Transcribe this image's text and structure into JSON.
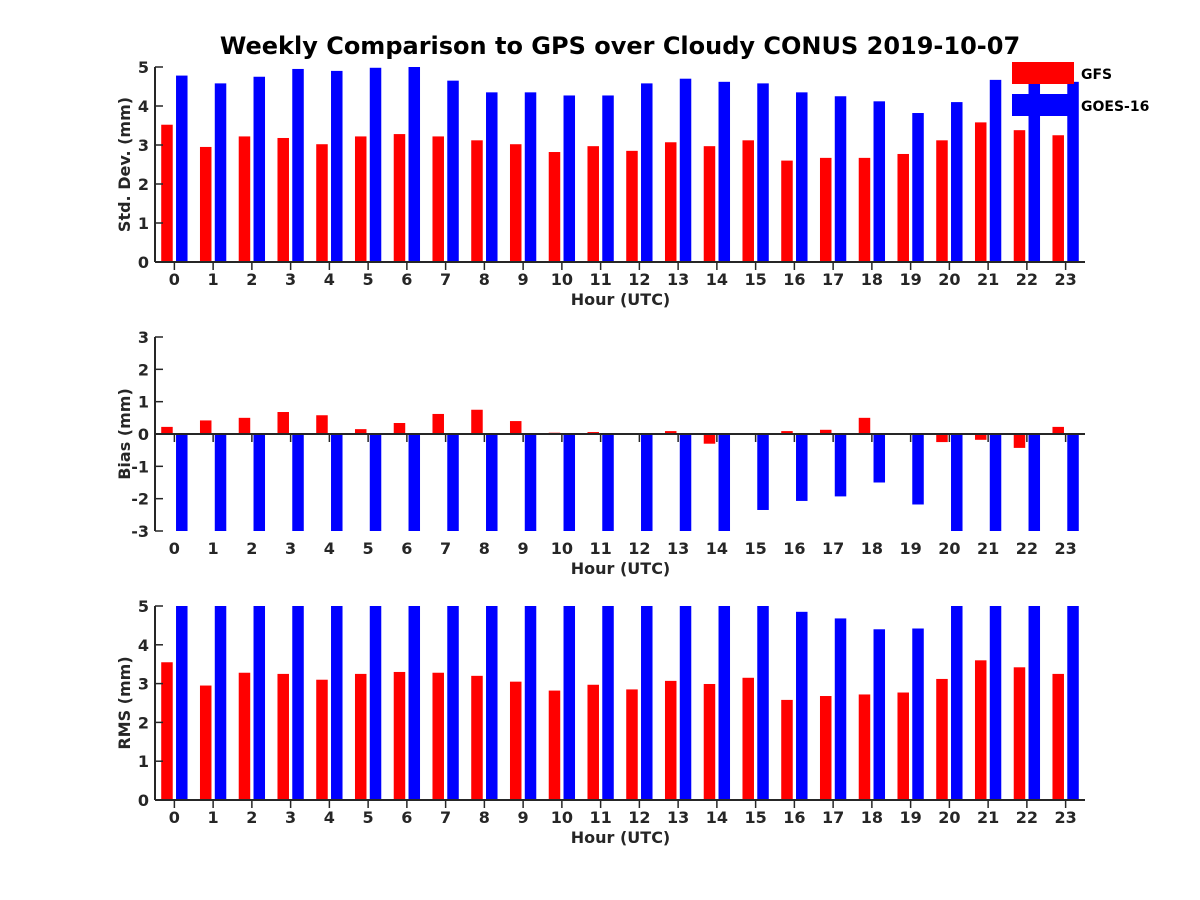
{
  "title": "Weekly Comparison to GPS over Cloudy CONUS 2019-10-07",
  "colors": {
    "GFS": "#ff0000",
    "GOES-16": "#0000ff",
    "axis": "#262626"
  },
  "legend": {
    "placement": "top-right",
    "items": [
      "GFS",
      "GOES-16"
    ]
  },
  "chart_data": [
    {
      "type": "bar",
      "ylabel": "Std. Dev. (mm)",
      "xlabel": "Hour (UTC)",
      "ylim": [
        0,
        5
      ],
      "yticks": [
        "0",
        "1",
        "2",
        "3",
        "4",
        "5"
      ],
      "categories": [
        "0",
        "1",
        "2",
        "3",
        "4",
        "5",
        "6",
        "7",
        "8",
        "9",
        "10",
        "11",
        "12",
        "13",
        "14",
        "15",
        "16",
        "17",
        "18",
        "19",
        "20",
        "21",
        "22",
        "23"
      ],
      "series": [
        {
          "name": "GFS",
          "values": [
            3.52,
            2.95,
            3.22,
            3.18,
            3.02,
            3.22,
            3.28,
            3.22,
            3.12,
            3.02,
            2.82,
            2.97,
            2.85,
            3.07,
            2.97,
            3.12,
            2.6,
            2.67,
            2.67,
            2.77,
            3.12,
            3.58,
            3.38,
            3.25
          ]
        },
        {
          "name": "GOES-16",
          "values": [
            4.78,
            4.58,
            4.75,
            4.95,
            4.9,
            4.98,
            5.0,
            4.65,
            4.35,
            4.35,
            4.27,
            4.27,
            4.58,
            4.7,
            4.62,
            4.58,
            4.35,
            4.25,
            4.12,
            3.82,
            4.1,
            4.67,
            4.85,
            4.62
          ]
        }
      ]
    },
    {
      "type": "bar",
      "ylabel": "Bias (mm)",
      "xlabel": "Hour (UTC)",
      "ylim": [
        -3,
        3
      ],
      "yticks": [
        "-3",
        "-2",
        "-1",
        "0",
        "1",
        "2",
        "3"
      ],
      "categories": [
        "0",
        "1",
        "2",
        "3",
        "4",
        "5",
        "6",
        "7",
        "8",
        "9",
        "10",
        "11",
        "12",
        "13",
        "14",
        "15",
        "16",
        "17",
        "18",
        "19",
        "20",
        "21",
        "22",
        "23"
      ],
      "series": [
        {
          "name": "GFS",
          "values": [
            0.22,
            0.42,
            0.5,
            0.68,
            0.58,
            0.15,
            0.34,
            0.62,
            0.75,
            0.4,
            0.04,
            0.06,
            0.0,
            0.09,
            -0.3,
            0.03,
            0.09,
            0.13,
            0.5,
            0.03,
            -0.25,
            -0.18,
            -0.43,
            0.22
          ]
        },
        {
          "name": "GOES-16",
          "values": [
            -3,
            -3,
            -3,
            -3,
            -3,
            -3,
            -3,
            -3,
            -3,
            -3,
            -3,
            -3,
            -3,
            -3,
            -3,
            -2.35,
            -2.07,
            -1.93,
            -1.5,
            -2.18,
            -3,
            -3,
            -3,
            -3
          ]
        }
      ]
    },
    {
      "type": "bar",
      "ylabel": "RMS (mm)",
      "xlabel": "Hour (UTC)",
      "ylim": [
        0,
        5
      ],
      "yticks": [
        "0",
        "1",
        "2",
        "3",
        "4",
        "5"
      ],
      "categories": [
        "0",
        "1",
        "2",
        "3",
        "4",
        "5",
        "6",
        "7",
        "8",
        "9",
        "10",
        "11",
        "12",
        "13",
        "14",
        "15",
        "16",
        "17",
        "18",
        "19",
        "20",
        "21",
        "22",
        "23"
      ],
      "series": [
        {
          "name": "GFS",
          "values": [
            3.55,
            2.95,
            3.28,
            3.25,
            3.1,
            3.25,
            3.3,
            3.28,
            3.2,
            3.05,
            2.82,
            2.97,
            2.85,
            3.07,
            2.99,
            3.15,
            2.58,
            2.68,
            2.72,
            2.77,
            3.12,
            3.6,
            3.42,
            3.25
          ]
        },
        {
          "name": "GOES-16",
          "values": [
            5,
            5,
            5,
            5,
            5,
            5,
            5,
            5,
            5,
            5,
            5,
            5,
            5,
            5,
            5,
            5,
            4.85,
            4.68,
            4.4,
            4.42,
            5,
            5,
            5,
            5
          ]
        }
      ]
    }
  ]
}
